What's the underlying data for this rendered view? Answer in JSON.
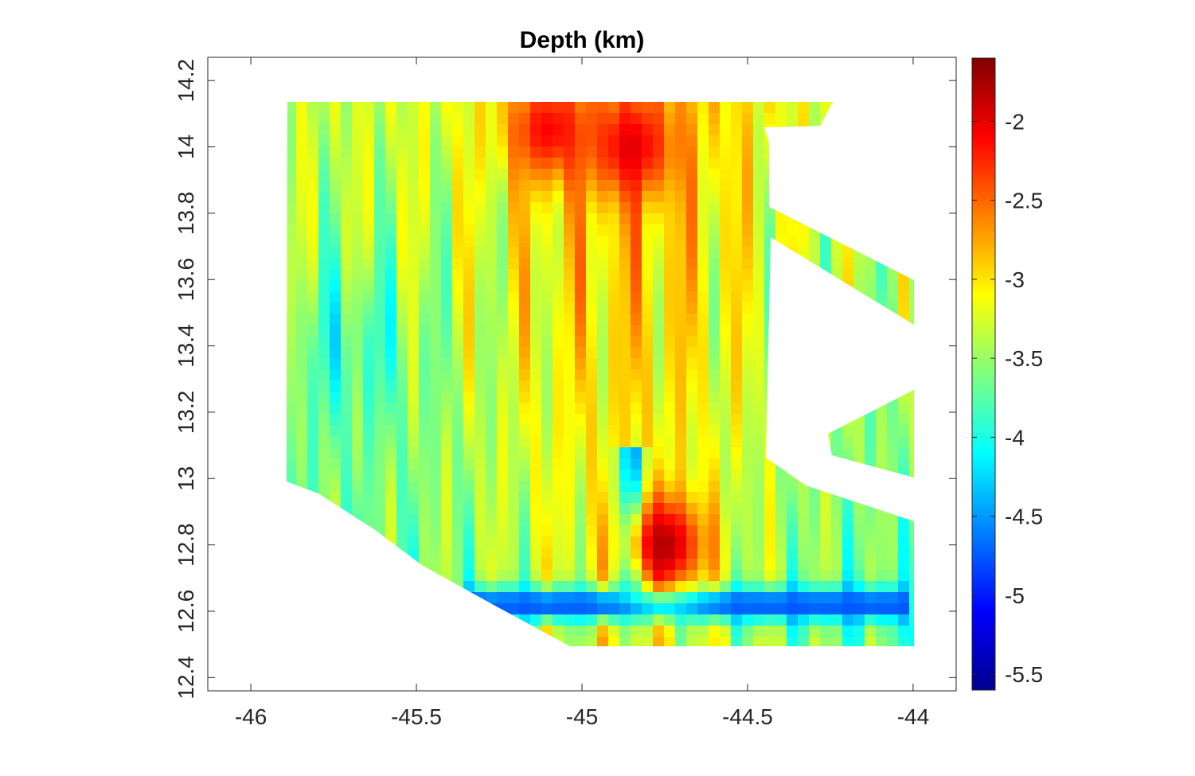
{
  "chart_data": {
    "type": "heatmap",
    "title": "Depth (km)",
    "xlabel": "",
    "ylabel": "",
    "xlim": [
      -46.13,
      -43.87
    ],
    "ylim": [
      12.36,
      14.27
    ],
    "x_ticks": [
      -46,
      -45.5,
      -45,
      -44.5,
      -44
    ],
    "x_tick_labels": [
      "-46",
      "-45.5",
      "-45",
      "-44.5",
      "-44"
    ],
    "y_ticks": [
      12.4,
      12.6,
      12.8,
      13,
      13.2,
      13.4,
      13.6,
      13.8,
      14,
      14.2
    ],
    "y_tick_labels": [
      "12.4",
      "12.6",
      "12.8",
      "13",
      "13.2",
      "13.4",
      "13.6",
      "13.8",
      "14",
      "14.2"
    ],
    "colormap": "jet",
    "clim": [
      -5.6,
      -1.6
    ],
    "colorbar_ticks": [
      -2,
      -2.5,
      -3,
      -3.5,
      -4,
      -4.5,
      -5,
      -5.5
    ],
    "colorbar_tick_labels": [
      "-2",
      "-2.5",
      "-3",
      "-3.5",
      "-4",
      "-4.5",
      "-5",
      "-5.5"
    ],
    "grid": false,
    "survey_extent": {
      "lon_min": -45.88,
      "lon_max": -44.0,
      "lat_min": 12.5,
      "lat_max": 14.15
    },
    "features": [
      {
        "kind": "trough",
        "lon_range": [
          -45.35,
          -44.0
        ],
        "lat": 12.62,
        "depth_km": -4.8
      },
      {
        "kind": "valley",
        "lon": -44.85,
        "lat_range": [
          12.65,
          13.1
        ],
        "depth_km": -4.6
      },
      {
        "kind": "high",
        "lon": -44.75,
        "lat": 12.8,
        "depth_km": -1.8
      },
      {
        "kind": "high",
        "lon": -45.1,
        "lat": 14.05,
        "depth_km": -2.1
      },
      {
        "kind": "high",
        "lon": -44.85,
        "lat": 14.0,
        "depth_km": -2.0
      }
    ]
  }
}
